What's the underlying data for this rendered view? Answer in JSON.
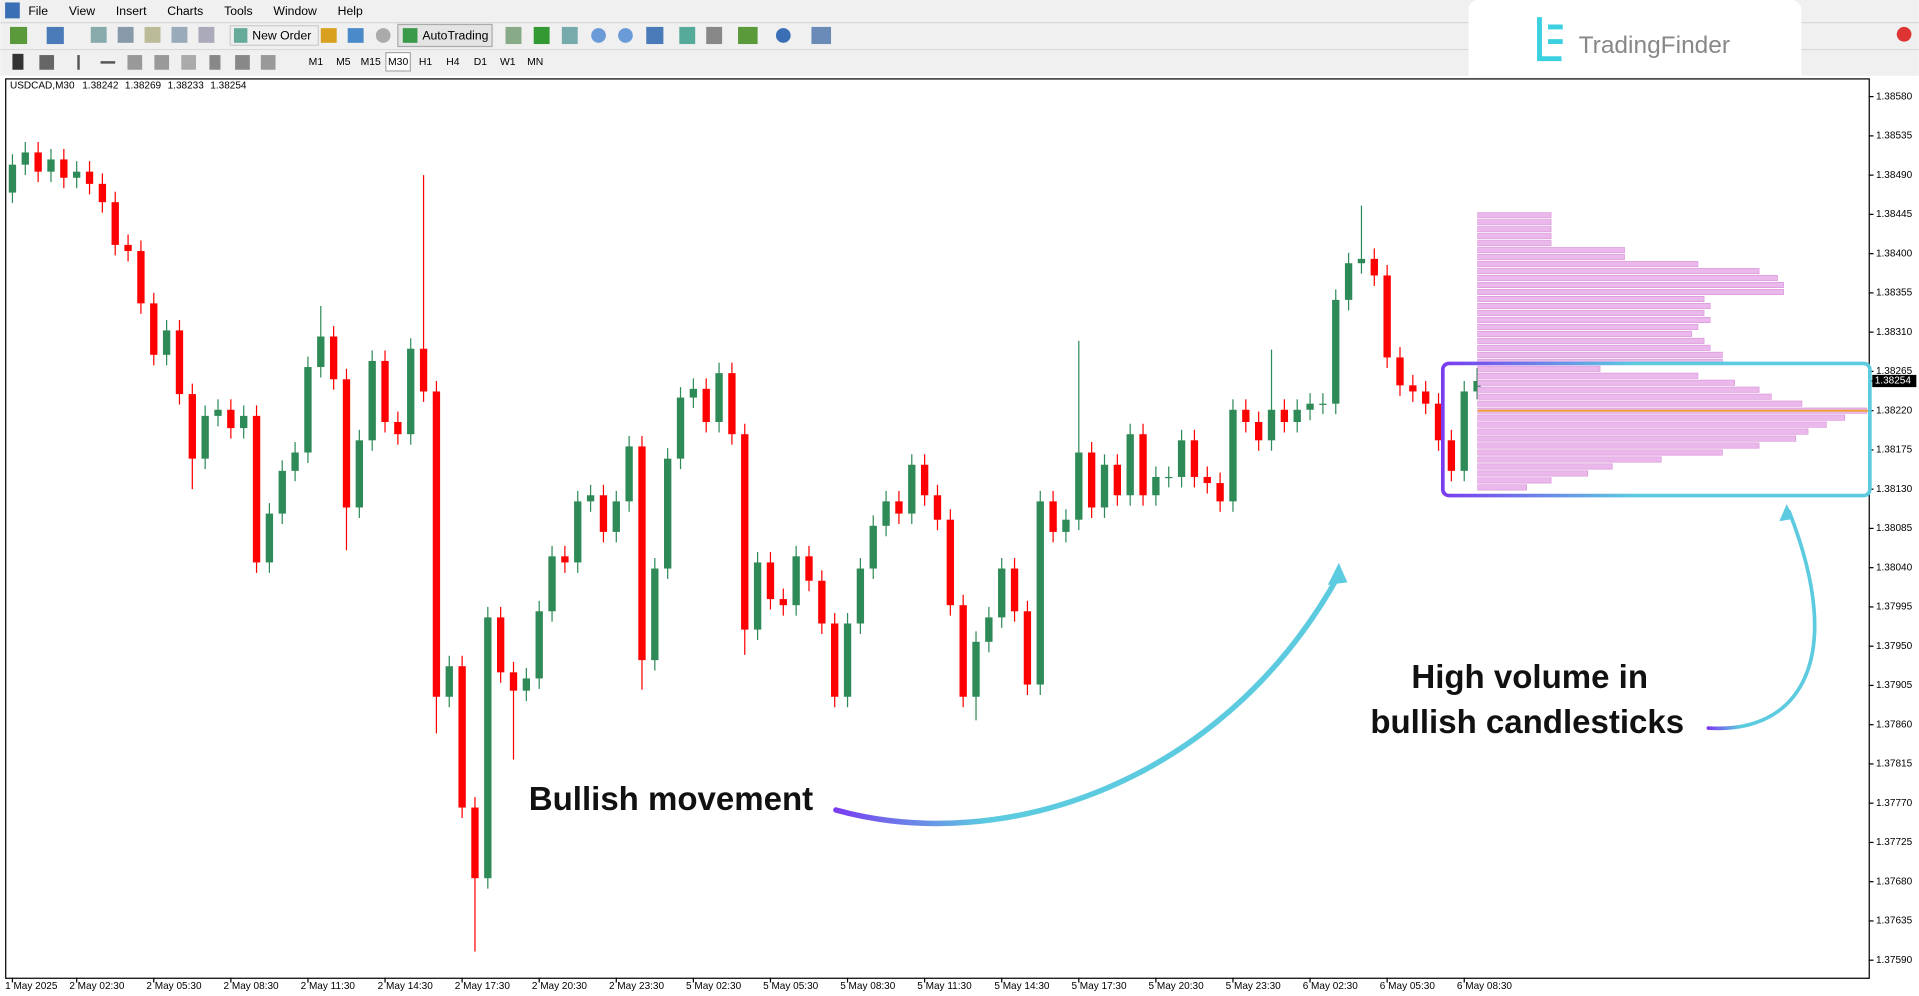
{
  "ui": {
    "menu": [
      "File",
      "View",
      "Insert",
      "Charts",
      "Tools",
      "Window",
      "Help"
    ],
    "buttons": {
      "new_order": "New Order",
      "auto_trading": "AutoTrading"
    },
    "timeframes": [
      "M1",
      "M5",
      "M15",
      "M30",
      "H1",
      "H4",
      "D1",
      "W1",
      "MN"
    ],
    "logo": "TradingFinder"
  },
  "chart_data": {
    "type": "candlestick",
    "title": "USDCAD,M30",
    "up_color": "#2e8b57",
    "down_color": "#ff0000",
    "open": [
      1.3847,
      1.38502,
      1.38516,
      1.38494,
      1.38508,
      1.38487,
      1.38494,
      1.3848,
      1.38459,
      1.3841,
      1.38403,
      1.38343,
      1.38284,
      1.38312,
      1.38239,
      1.38165,
      1.38214,
      1.38221,
      1.382,
      1.38214,
      1.38046,
      1.38102,
      1.38151,
      1.38172,
      1.3827,
      1.38305,
      1.38256,
      1.38109,
      1.38186,
      1.38277,
      1.38207,
      1.38193,
      1.38291,
      1.38242,
      1.37892,
      1.37927,
      1.37765,
      1.37684,
      1.37983,
      1.3792,
      1.37899,
      1.37913,
      1.3799,
      1.38053,
      1.38046,
      1.38116,
      1.38123,
      1.38081,
      1.38116,
      1.38179,
      1.37934,
      1.38039,
      1.38165,
      1.38235,
      1.38245,
      1.38207,
      1.38263,
      1.38193,
      1.37969,
      1.38046,
      1.38004,
      1.37997,
      1.38053,
      1.38025,
      1.37976,
      1.37892,
      1.37976,
      1.38039,
      1.38088,
      1.38116,
      1.38102,
      1.38158,
      1.38123,
      1.38095,
      1.37997,
      1.37892,
      1.37955,
      1.37983,
      1.38039,
      1.3799,
      1.37906,
      1.38116,
      1.38081,
      1.38095,
      1.38172,
      1.38109,
      1.38158,
      1.38123,
      1.38193,
      1.38123,
      1.38144,
      1.38144,
      1.38186,
      1.38144,
      1.38137,
      1.38116,
      1.38221,
      1.38207,
      1.38186,
      1.38221,
      1.38207,
      1.38221,
      1.38228,
      1.38228,
      1.38347,
      1.38389,
      1.38394,
      1.38375,
      1.38281,
      1.38249,
      1.38242,
      1.38228,
      1.38186,
      1.38151,
      1.38242
    ],
    "high": [
      1.38514,
      1.38528,
      1.38528,
      1.3852,
      1.3852,
      1.38506,
      1.38506,
      1.38492,
      1.38471,
      1.38422,
      1.38415,
      1.38355,
      1.38324,
      1.38324,
      1.38251,
      1.38226,
      1.38233,
      1.38233,
      1.38226,
      1.38226,
      1.38114,
      1.38163,
      1.38184,
      1.38282,
      1.3834,
      1.38317,
      1.38268,
      1.38198,
      1.38289,
      1.38289,
      1.38219,
      1.38303,
      1.3849,
      1.38254,
      1.37939,
      1.37939,
      1.37777,
      1.37995,
      1.37995,
      1.37932,
      1.37925,
      1.38002,
      1.38065,
      1.38065,
      1.38128,
      1.38135,
      1.38135,
      1.38128,
      1.38191,
      1.38191,
      1.38051,
      1.38177,
      1.38247,
      1.38257,
      1.38257,
      1.38275,
      1.38275,
      1.38205,
      1.38058,
      1.38058,
      1.38016,
      1.38065,
      1.38065,
      1.38037,
      1.37988,
      1.37988,
      1.38051,
      1.381,
      1.38128,
      1.38128,
      1.3817,
      1.3817,
      1.38135,
      1.38107,
      1.38009,
      1.37967,
      1.37995,
      1.38051,
      1.38051,
      1.38002,
      1.38128,
      1.38128,
      1.38107,
      1.383,
      1.38184,
      1.3817,
      1.3817,
      1.38205,
      1.38205,
      1.38156,
      1.38156,
      1.38198,
      1.38198,
      1.38156,
      1.38149,
      1.38233,
      1.38233,
      1.38219,
      1.3829,
      1.38233,
      1.38233,
      1.3824,
      1.3824,
      1.38359,
      1.38401,
      1.38455,
      1.38406,
      1.38387,
      1.38293,
      1.38261,
      1.38254,
      1.3824,
      1.38198,
      1.38254,
      1.38269
    ],
    "low": [
      1.38458,
      1.3849,
      1.38482,
      1.38482,
      1.38475,
      1.38475,
      1.38468,
      1.38447,
      1.38398,
      1.38391,
      1.38331,
      1.38272,
      1.38272,
      1.38227,
      1.3813,
      1.38153,
      1.38202,
      1.38188,
      1.38188,
      1.38034,
      1.38034,
      1.3809,
      1.38139,
      1.3816,
      1.38258,
      1.38244,
      1.3806,
      1.38097,
      1.38174,
      1.38195,
      1.38181,
      1.38181,
      1.3823,
      1.3785,
      1.3788,
      1.37753,
      1.376,
      1.37672,
      1.37908,
      1.3782,
      1.37887,
      1.37901,
      1.37978,
      1.38034,
      1.38034,
      1.38104,
      1.38069,
      1.38069,
      1.38104,
      1.379,
      1.37922,
      1.38027,
      1.38153,
      1.38223,
      1.38195,
      1.38195,
      1.38181,
      1.3794,
      1.37957,
      1.37992,
      1.37985,
      1.37985,
      1.38013,
      1.37964,
      1.3788,
      1.3788,
      1.37964,
      1.38027,
      1.38076,
      1.3809,
      1.3809,
      1.38111,
      1.38083,
      1.37985,
      1.3788,
      1.37865,
      1.37943,
      1.37971,
      1.37978,
      1.37894,
      1.37894,
      1.38069,
      1.38069,
      1.38083,
      1.38097,
      1.38097,
      1.38111,
      1.38111,
      1.38111,
      1.38111,
      1.38132,
      1.38132,
      1.38132,
      1.38125,
      1.38104,
      1.38104,
      1.38195,
      1.38174,
      1.38174,
      1.38195,
      1.38195,
      1.38209,
      1.38216,
      1.38216,
      1.38335,
      1.38377,
      1.38363,
      1.38269,
      1.38237,
      1.3823,
      1.38216,
      1.38174,
      1.38139,
      1.38139,
      1.38233
    ],
    "close": [
      1.38502,
      1.38516,
      1.38494,
      1.38508,
      1.38487,
      1.38494,
      1.3848,
      1.38459,
      1.3841,
      1.38403,
      1.38343,
      1.38284,
      1.38312,
      1.38239,
      1.38165,
      1.38214,
      1.38221,
      1.382,
      1.38214,
      1.38046,
      1.38102,
      1.38151,
      1.38172,
      1.3827,
      1.38305,
      1.38256,
      1.38109,
      1.38186,
      1.38277,
      1.38207,
      1.38193,
      1.38291,
      1.38242,
      1.37892,
      1.37927,
      1.37765,
      1.37684,
      1.37983,
      1.3792,
      1.37899,
      1.37913,
      1.3799,
      1.38053,
      1.38046,
      1.38116,
      1.38123,
      1.38081,
      1.38116,
      1.38179,
      1.37934,
      1.38039,
      1.38165,
      1.38235,
      1.38245,
      1.38207,
      1.38263,
      1.38193,
      1.37969,
      1.38046,
      1.38004,
      1.37997,
      1.38053,
      1.38025,
      1.37976,
      1.37892,
      1.37976,
      1.38039,
      1.38088,
      1.38116,
      1.38102,
      1.38158,
      1.38123,
      1.38095,
      1.37997,
      1.37892,
      1.37955,
      1.37983,
      1.38039,
      1.3799,
      1.37906,
      1.38116,
      1.38081,
      1.38095,
      1.38172,
      1.38109,
      1.38158,
      1.38123,
      1.38193,
      1.38123,
      1.38144,
      1.38144,
      1.38186,
      1.38144,
      1.38137,
      1.38116,
      1.38221,
      1.38207,
      1.38186,
      1.38221,
      1.38207,
      1.38221,
      1.38228,
      1.38228,
      1.38347,
      1.38389,
      1.38394,
      1.38375,
      1.38281,
      1.38249,
      1.38242,
      1.38228,
      1.38186,
      1.38151,
      1.38242,
      1.38254
    ],
    "ylim": [
      1.3757,
      1.38601
    ],
    "yticks": [
      {
        "value": 1.3858,
        "label": "1.38580"
      },
      1.38535,
      {
        "value": 1.3849,
        "label": "1.38490"
      },
      1.38445,
      {
        "value": 1.384,
        "label": "1.38400"
      },
      1.38355,
      {
        "value": 1.3831,
        "label": "1.38310"
      },
      1.38265,
      {
        "value": 1.3822,
        "label": "1.38220"
      },
      1.38175,
      {
        "value": 1.3813,
        "label": "1.38130"
      },
      1.38085,
      {
        "value": 1.3804,
        "label": "1.38040"
      },
      1.37995,
      {
        "value": 1.3795,
        "label": "1.37950"
      },
      1.37905,
      {
        "value": 1.3786,
        "label": "1.37860"
      },
      1.37815,
      {
        "value": 1.3777,
        "label": "1.37770"
      },
      1.37725,
      {
        "value": 1.3768,
        "label": "1.37680"
      },
      1.37635,
      {
        "value": 1.3759,
        "label": "1.37590"
      }
    ],
    "xticks": [
      {
        "value": 0,
        "label": "1 May 2025"
      },
      {
        "value": 5,
        "label": "2 May 02:30"
      },
      {
        "value": 11,
        "label": "2 May 05:30"
      },
      {
        "value": 17,
        "label": "2 May 08:30"
      },
      {
        "value": 23,
        "label": "2 May 11:30"
      },
      {
        "value": 29,
        "label": "2 May 14:30"
      },
      {
        "value": 35,
        "label": "2 May 17:30"
      },
      {
        "value": 41,
        "label": "2 May 20:30"
      },
      {
        "value": 47,
        "label": "2 May 23:30"
      },
      {
        "value": 53,
        "label": "5 May 02:30"
      },
      {
        "value": 59,
        "label": "5 May 05:30"
      },
      {
        "value": 65,
        "label": "5 May 08:30"
      },
      {
        "value": 71,
        "label": "5 May 11:30"
      },
      {
        "value": 77,
        "label": "5 May 14:30"
      },
      {
        "value": 83,
        "label": "5 May 17:30"
      },
      {
        "value": 89,
        "label": "5 May 20:30"
      },
      {
        "value": 95,
        "label": "5 May 23:30"
      },
      {
        "value": 101,
        "label": "6 May 02:30"
      },
      {
        "value": 107,
        "label": "6 May 05:30"
      },
      {
        "value": 113,
        "label": "6 May 08:30"
      }
    ],
    "volume_profile": {
      "color": "#eab8ea",
      "poc_color": "#f0a030",
      "levels": [
        1.38132,
        1.3814,
        1.38148,
        1.38156,
        1.38164,
        1.38172,
        1.3818,
        1.38188,
        1.38196,
        1.38204,
        1.38212,
        1.3822,
        1.38228,
        1.38236,
        1.38244,
        1.38252,
        1.3826,
        1.38268,
        1.38276,
        1.38284,
        1.38292,
        1.383,
        1.38308,
        1.38316,
        1.38324,
        1.38332,
        1.3834,
        1.38348,
        1.38356,
        1.38364,
        1.38372,
        1.3838,
        1.38388,
        1.38396,
        1.38404,
        1.38412,
        1.3842,
        1.38428,
        1.38436,
        1.38444
      ],
      "values": [
        40,
        60,
        90,
        110,
        150,
        200,
        230,
        260,
        270,
        285,
        300,
        318,
        265,
        240,
        230,
        210,
        180,
        100,
        200,
        200,
        190,
        185,
        175,
        180,
        190,
        185,
        190,
        185,
        250,
        250,
        245,
        230,
        180,
        120,
        120,
        60,
        60,
        60,
        60,
        60
      ]
    },
    "annotations": [
      "Bullish movement",
      "High volume in",
      "bullish candlesticks"
    ]
  }
}
